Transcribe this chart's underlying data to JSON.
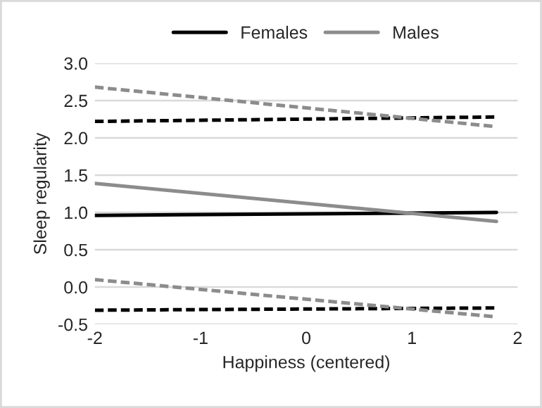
{
  "chart_data": {
    "type": "line",
    "xlabel": "Happiness (centered)",
    "ylabel": "Sleep regularity",
    "xlim": [
      -2,
      2
    ],
    "xticks": [
      -2,
      -1,
      0,
      1,
      2
    ],
    "ylim": [
      -0.5,
      3.0
    ],
    "yticks": [
      {
        "value": -0.5,
        "label": "-0.5"
      },
      {
        "value": 0.0,
        "label": "0.0"
      },
      {
        "value": 0.5,
        "label": "0.5"
      },
      {
        "value": 1.0,
        "label": "1.0"
      },
      {
        "value": 1.5,
        "label": "1.5"
      },
      {
        "value": 2.0,
        "label": "2.0"
      },
      {
        "value": 2.5,
        "label": "2.5"
      },
      {
        "value": 3.0,
        "label": "3.0"
      }
    ],
    "grid": "y",
    "legend": "top",
    "x": [
      -2,
      1.8
    ],
    "series": [
      {
        "name": "Females",
        "color": "#000000",
        "values": [
          0.96,
          1.0
        ],
        "line_style": "solid"
      },
      {
        "name": "Males",
        "color": "#8c8c8c",
        "values": [
          1.39,
          0.88
        ],
        "line_style": "solid"
      },
      {
        "color": "#000000",
        "values": [
          2.22,
          2.28
        ],
        "line_style": "dashed"
      },
      {
        "color": "#000000",
        "values": [
          -0.31,
          -0.28
        ],
        "line_style": "dashed"
      },
      {
        "color": "#8c8c8c",
        "values": [
          2.68,
          2.15
        ],
        "line_style": "dashed"
      },
      {
        "color": "#8c8c8c",
        "values": [
          0.1,
          -0.4
        ],
        "line_style": "dashed"
      }
    ]
  }
}
